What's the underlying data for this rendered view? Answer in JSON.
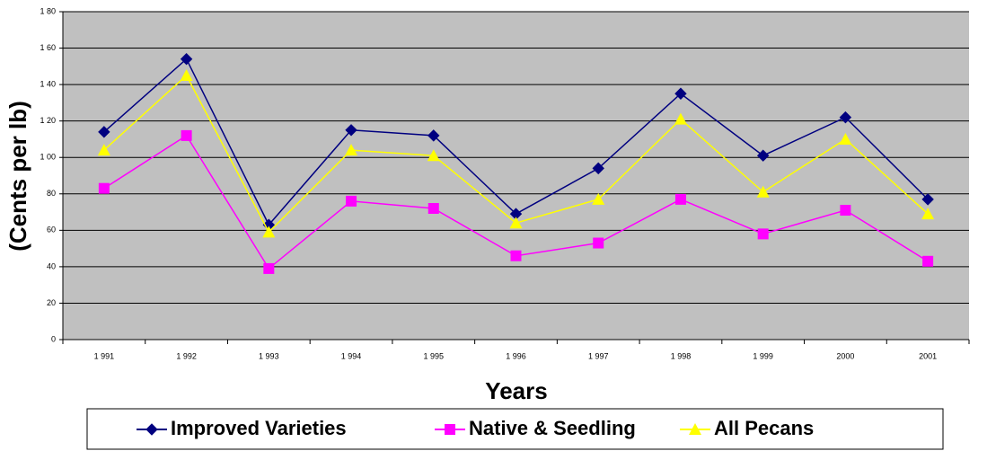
{
  "chart_data": {
    "type": "line",
    "y_label": "(Cents per lb)",
    "x_label": "Years",
    "categories": [
      "1 991",
      "1 992",
      "1 993",
      "1 994",
      "1 995",
      "1 996",
      "1 997",
      "1 998",
      "1 999",
      "2000",
      "2001"
    ],
    "series": [
      {
        "name": "Improved Varieties",
        "color": "#000080",
        "marker": "diamond",
        "values": [
          114,
          154,
          63,
          115,
          112,
          69,
          94,
          135,
          101,
          122,
          77
        ]
      },
      {
        "name": "Native & Seedling",
        "color": "#ff00ff",
        "marker": "square",
        "values": [
          83,
          112,
          39,
          76,
          72,
          46,
          53,
          77,
          58,
          71,
          43
        ]
      },
      {
        "name": "All Pecans",
        "color": "#ffff00",
        "marker": "triangle",
        "values": [
          104,
          145,
          59,
          104,
          101,
          64,
          77,
          121,
          81,
          110,
          69
        ]
      }
    ],
    "ylim": [
      0,
      180
    ],
    "yticks": [
      0,
      20,
      40,
      60,
      80,
      {
        "value": 100,
        "label": "1 00"
      },
      {
        "value": 120,
        "label": "1 20"
      },
      {
        "value": 140,
        "label": "1 40"
      },
      {
        "value": 160,
        "label": "1 60"
      },
      {
        "value": 180,
        "label": "1 80"
      }
    ],
    "grid": true
  }
}
